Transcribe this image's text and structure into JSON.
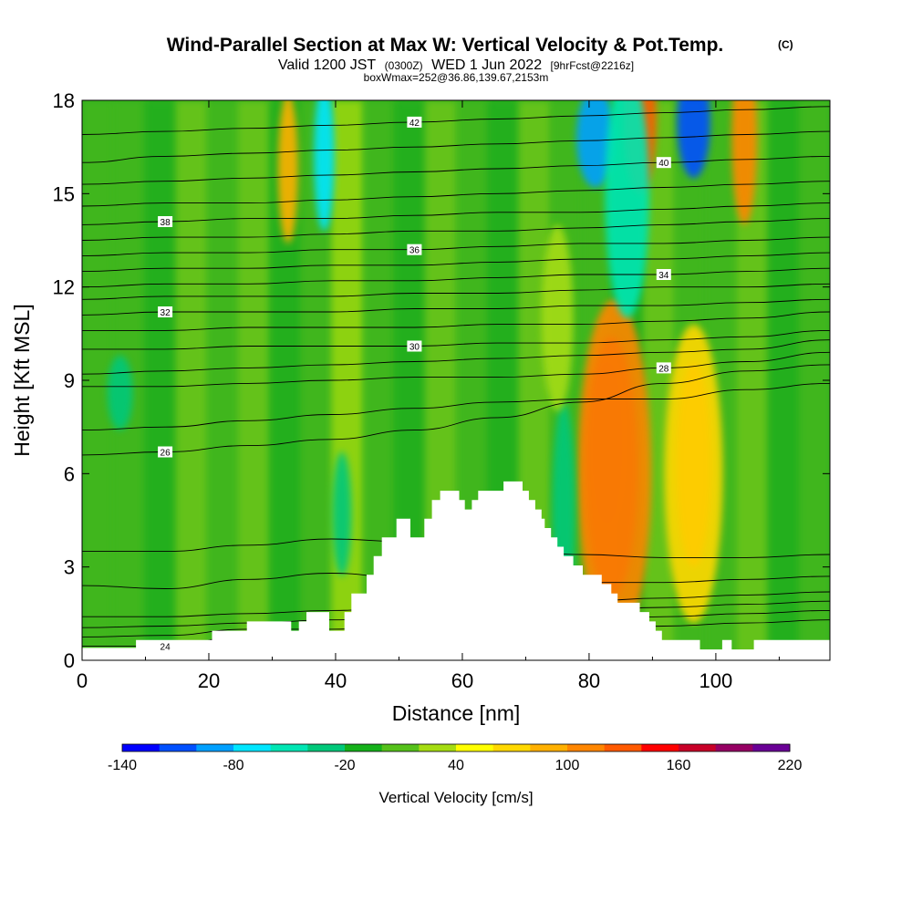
{
  "title": {
    "main": "Wind-Parallel Section at Max W: Vertical Velocity & Pot.Temp.",
    "copyright": "(C)",
    "valid_prefix": "Valid 1200 JST",
    "valid_z": "(0300Z)",
    "valid_date": "WED 1 Jun 2022",
    "fcst": "[9hrFcst@2216z]",
    "boxwmax": "boxWmax=252@36.86,139.67,2153m"
  },
  "colors": {
    "ground": "#ffffff",
    "background_field": "#2fae1f",
    "contour": "#000000",
    "colorbar": [
      "#0000ff",
      "#0050ff",
      "#00a0ff",
      "#00e6ff",
      "#00e6b4",
      "#00c87a",
      "#15b11a",
      "#55c11a",
      "#a5dc12",
      "#ffff00",
      "#ffd800",
      "#ffb000",
      "#ff8600",
      "#ff5a00",
      "#ff0000",
      "#c80028",
      "#960064",
      "#6a0096"
    ]
  },
  "chart_data": {
    "type": "heatmap",
    "title": "Wind-Parallel Section at Max W: Vertical Velocity & Pot.Temp.",
    "xlabel": "Distance [nm]",
    "ylabel": "Height [Kft MSL]",
    "xlim": [
      0,
      118
    ],
    "ylim": [
      0,
      18
    ],
    "x_ticks": [
      0,
      20,
      40,
      60,
      80,
      100
    ],
    "y_ticks": [
      0,
      3,
      6,
      9,
      12,
      15,
      18
    ],
    "colorbar": {
      "label": "Vertical Velocity [cm/s]",
      "min": -140,
      "step": 20,
      "bins": 18,
      "tick_values": [
        -140,
        -80,
        -20,
        40,
        100,
        160,
        220
      ],
      "tick_labels": [
        "-140",
        "-80",
        "-20",
        "40",
        "100",
        "160",
        "220"
      ]
    },
    "terrain_kft": [
      [
        0,
        0.4
      ],
      [
        8.5,
        0.4
      ],
      [
        8.5,
        0.65
      ],
      [
        20.5,
        0.65
      ],
      [
        20.5,
        0.95
      ],
      [
        26,
        0.95
      ],
      [
        26,
        1.25
      ],
      [
        33,
        1.25
      ],
      [
        33,
        0.95
      ],
      [
        34.2,
        0.95
      ],
      [
        34.2,
        1.25
      ],
      [
        35.4,
        1.25
      ],
      [
        35.4,
        1.55
      ],
      [
        39,
        1.55
      ],
      [
        39,
        0.95
      ],
      [
        41.4,
        0.95
      ],
      [
        41.4,
        1.55
      ],
      [
        42.5,
        1.55
      ],
      [
        42.5,
        2.15
      ],
      [
        44.9,
        2.15
      ],
      [
        44.9,
        2.75
      ],
      [
        46,
        2.75
      ],
      [
        46,
        3.35
      ],
      [
        47.3,
        3.35
      ],
      [
        47.3,
        3.95
      ],
      [
        49.6,
        3.95
      ],
      [
        49.6,
        4.55
      ],
      [
        51.8,
        4.55
      ],
      [
        51.8,
        3.95
      ],
      [
        54,
        3.95
      ],
      [
        54,
        4.55
      ],
      [
        55.2,
        4.55
      ],
      [
        55.2,
        5.15
      ],
      [
        56.5,
        5.15
      ],
      [
        56.5,
        5.45
      ],
      [
        59.5,
        5.45
      ],
      [
        59.5,
        5.15
      ],
      [
        60.4,
        5.15
      ],
      [
        60.4,
        4.85
      ],
      [
        61.5,
        4.85
      ],
      [
        61.5,
        5.15
      ],
      [
        62.5,
        5.15
      ],
      [
        62.5,
        5.45
      ],
      [
        66.5,
        5.45
      ],
      [
        66.5,
        5.75
      ],
      [
        69.5,
        5.75
      ],
      [
        69.5,
        5.45
      ],
      [
        70.5,
        5.45
      ],
      [
        70.5,
        5.15
      ],
      [
        71.5,
        5.15
      ],
      [
        71.5,
        4.85
      ],
      [
        72.5,
        4.85
      ],
      [
        72.5,
        4.55
      ],
      [
        73,
        4.55
      ],
      [
        73,
        4.25
      ],
      [
        74,
        4.25
      ],
      [
        74,
        3.95
      ],
      [
        75,
        3.95
      ],
      [
        75,
        3.65
      ],
      [
        76,
        3.65
      ],
      [
        76,
        3.35
      ],
      [
        77.5,
        3.35
      ],
      [
        77.5,
        3.05
      ],
      [
        79,
        3.05
      ],
      [
        79,
        2.75
      ],
      [
        82,
        2.75
      ],
      [
        82,
        2.45
      ],
      [
        83.5,
        2.45
      ],
      [
        83.5,
        2.15
      ],
      [
        84.5,
        2.15
      ],
      [
        84.5,
        1.85
      ],
      [
        88,
        1.85
      ],
      [
        88,
        1.55
      ],
      [
        89.5,
        1.55
      ],
      [
        89.5,
        1.25
      ],
      [
        90.5,
        1.25
      ],
      [
        90.5,
        0.95
      ],
      [
        91.5,
        0.95
      ],
      [
        91.5,
        0.65
      ],
      [
        97.5,
        0.65
      ],
      [
        97.5,
        0.35
      ],
      [
        101,
        0.35
      ],
      [
        101,
        0.65
      ],
      [
        102.5,
        0.65
      ],
      [
        102.5,
        0.35
      ],
      [
        106,
        0.35
      ],
      [
        106,
        0.65
      ],
      [
        118,
        0.65
      ]
    ],
    "isentropes": [
      {
        "label": "24",
        "y": [
          0.45,
          0.45,
          0.8,
          0.8,
          0.9,
          0.9,
          1.0,
          1.1,
          1.2,
          1.3
        ]
      },
      {
        "label": "",
        "y": [
          0.75,
          0.8,
          1.0,
          1.0,
          1.1,
          1.2,
          1.3,
          1.4,
          1.5,
          1.6
        ]
      },
      {
        "label": "",
        "y": [
          1.05,
          1.1,
          1.2,
          1.3,
          1.4,
          1.5,
          1.6,
          1.7,
          1.8,
          1.9
        ]
      },
      {
        "label": "",
        "y": [
          1.4,
          1.4,
          1.5,
          1.6,
          1.7,
          1.8,
          1.9,
          2.0,
          2.1,
          2.2
        ]
      },
      {
        "label": "",
        "y": [
          2.4,
          2.3,
          2.6,
          2.8,
          2.6,
          2.5,
          2.5,
          2.5,
          2.6,
          2.7
        ]
      },
      {
        "label": "",
        "y": [
          3.5,
          3.5,
          3.7,
          3.9,
          3.8,
          3.6,
          3.4,
          3.3,
          3.3,
          3.4
        ]
      },
      {
        "label": "26",
        "y": [
          6.6,
          6.7,
          6.9,
          7.1,
          7.4,
          7.8,
          8.3,
          8.9,
          9.3,
          9.5
        ]
      },
      {
        "label": "",
        "y": [
          7.4,
          7.5,
          7.7,
          7.9,
          8.1,
          8.3,
          8.4,
          8.4,
          8.7,
          8.9
        ]
      },
      {
        "label": "28",
        "y": [
          8.8,
          8.8,
          8.9,
          9.0,
          9.1,
          9.1,
          9.2,
          9.4,
          9.6,
          9.9
        ]
      },
      {
        "label": "",
        "y": [
          9.2,
          9.3,
          9.4,
          9.5,
          9.6,
          9.7,
          9.8,
          9.9,
          10.0,
          10.3
        ]
      },
      {
        "label": "30",
        "y": [
          10.0,
          10.0,
          10.1,
          10.1,
          10.1,
          10.2,
          10.2,
          10.3,
          10.4,
          10.6
        ]
      },
      {
        "label": "",
        "y": [
          10.6,
          10.6,
          10.7,
          10.7,
          10.7,
          10.8,
          10.8,
          10.9,
          11.0,
          11.2
        ]
      },
      {
        "label": "32",
        "y": [
          11.1,
          11.2,
          11.2,
          11.2,
          11.3,
          11.3,
          11.4,
          11.4,
          11.5,
          11.6
        ]
      },
      {
        "label": "",
        "y": [
          11.6,
          11.7,
          11.7,
          11.7,
          11.8,
          11.8,
          11.9,
          12.0,
          12.0,
          12.1
        ]
      },
      {
        "label": "34",
        "y": [
          12.0,
          12.1,
          12.1,
          12.2,
          12.2,
          12.3,
          12.4,
          12.4,
          12.5,
          12.6
        ]
      },
      {
        "label": "",
        "y": [
          12.5,
          12.6,
          12.6,
          12.7,
          12.7,
          12.8,
          12.9,
          12.9,
          13.0,
          13.1
        ]
      },
      {
        "label": "36",
        "y": [
          13.0,
          13.1,
          13.1,
          13.2,
          13.2,
          13.3,
          13.4,
          13.4,
          13.5,
          13.6
        ]
      },
      {
        "label": "",
        "y": [
          13.5,
          13.6,
          13.6,
          13.7,
          13.8,
          13.8,
          13.9,
          14.0,
          14.1,
          14.2
        ]
      },
      {
        "label": "38",
        "y": [
          14.0,
          14.1,
          14.2,
          14.2,
          14.3,
          14.4,
          14.4,
          14.5,
          14.6,
          14.7
        ]
      },
      {
        "label": "",
        "y": [
          14.6,
          14.7,
          14.7,
          14.8,
          14.9,
          15.0,
          15.1,
          15.2,
          15.3,
          15.4
        ]
      },
      {
        "label": "40",
        "y": [
          15.3,
          15.4,
          15.5,
          15.6,
          15.7,
          15.8,
          15.9,
          16.0,
          16.1,
          16.2
        ]
      },
      {
        "label": "",
        "y": [
          16.0,
          16.2,
          16.3,
          16.4,
          16.5,
          16.6,
          16.7,
          16.8,
          16.9,
          17.0
        ]
      },
      {
        "label": "42",
        "y": [
          16.9,
          17.0,
          17.1,
          17.2,
          17.3,
          17.4,
          17.5,
          17.6,
          17.7,
          17.8
        ]
      }
    ],
    "velocity_features": [
      {
        "x": 82.8,
        "y": 7.0,
        "rx": 2.2,
        "ry": 2.6,
        "value": 230
      },
      {
        "x": 83.5,
        "y": 6.2,
        "rx": 4.2,
        "ry": 4.2,
        "value": 170
      },
      {
        "x": 84,
        "y": 6.0,
        "rx": 5.8,
        "ry": 5.6,
        "value": 110
      },
      {
        "x": 96.5,
        "y": 6.3,
        "rx": 2.8,
        "ry": 3.3,
        "value": 120
      },
      {
        "x": 96.5,
        "y": 6.0,
        "rx": 4.6,
        "ry": 4.8,
        "value": 60
      },
      {
        "x": 88,
        "y": 17.5,
        "rx": 2.6,
        "ry": 2.5,
        "value": 130
      },
      {
        "x": 104.5,
        "y": 16.8,
        "rx": 2.0,
        "ry": 2.8,
        "value": 100
      },
      {
        "x": 96.5,
        "y": 17.3,
        "rx": 2.6,
        "ry": 1.8,
        "value": -110
      },
      {
        "x": 81,
        "y": 16.8,
        "rx": 3.0,
        "ry": 1.6,
        "value": -90
      },
      {
        "x": 38.2,
        "y": 16.2,
        "rx": 1.6,
        "ry": 2.4,
        "value": -70
      },
      {
        "x": 32.5,
        "y": 15.8,
        "rx": 1.6,
        "ry": 2.4,
        "value": 80
      },
      {
        "x": 86,
        "y": 15.0,
        "rx": 3.5,
        "ry": 4.0,
        "value": -50
      },
      {
        "x": 6,
        "y": 8.6,
        "rx": 2.0,
        "ry": 1.2,
        "value": -40
      },
      {
        "x": 41,
        "y": 4.7,
        "rx": 1.5,
        "ry": 2.0,
        "value": -30
      },
      {
        "x": 76,
        "y": 4.8,
        "rx": 1.8,
        "ry": 3.5,
        "value": -30
      },
      {
        "x": 75,
        "y": 11.0,
        "rx": 2.5,
        "ry": 3.0,
        "value": 30
      }
    ]
  }
}
